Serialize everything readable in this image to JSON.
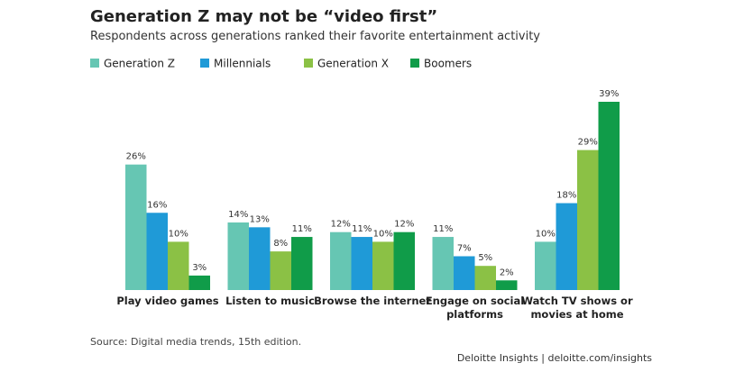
{
  "chart_data": {
    "type": "bar",
    "title": "Generation Z may not be “video first”",
    "subtitle": "Respondents across generations ranked their favorite entertainment activity",
    "categories": [
      "Play video games",
      "Listen to music",
      "Browse the internet",
      "Engage on social\nplatforms",
      "Watch TV shows or\nmovies at home"
    ],
    "series": [
      {
        "name": "Generation Z",
        "color": "#66c6b3",
        "values": [
          26,
          14,
          12,
          11,
          10
        ],
        "value_labels": [
          "26%",
          "14%",
          "12%",
          "11%",
          "10%"
        ]
      },
      {
        "name": "Millennials",
        "color": "#1f9ad7",
        "values": [
          16,
          13,
          11,
          7,
          18
        ],
        "value_labels": [
          "16%",
          "13%",
          "11%",
          "7%",
          "18%"
        ]
      },
      {
        "name": "Generation X",
        "color": "#8bc145",
        "values": [
          10,
          8,
          10,
          5,
          29
        ],
        "value_labels": [
          "10%",
          "8%",
          "10%",
          "5%",
          "29%"
        ]
      },
      {
        "name": "Boomers",
        "color": "#109c49",
        "values": [
          3,
          11,
          12,
          2,
          39
        ],
        "value_labels": [
          "3%",
          "11%",
          "12%",
          "2%",
          "39%"
        ]
      }
    ],
    "source": "Source: Digital media trends, 15th edition.",
    "credit": "Deloitte Insights | deloitte.com/insights"
  }
}
